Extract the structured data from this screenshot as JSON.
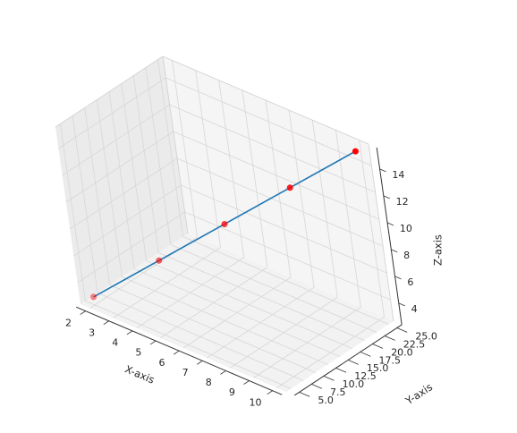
{
  "chart_data": {
    "type": "line",
    "projection": "3d",
    "title": "",
    "xlabel": "X-axis",
    "ylabel": "Y-axis",
    "zlabel": "Z-axis",
    "x_ticks": [
      "2",
      "3",
      "4",
      "5",
      "6",
      "7",
      "8",
      "9",
      "10"
    ],
    "y_ticks": [
      "5.0",
      "7.5",
      "10.0",
      "12.5",
      "15.0",
      "17.5",
      "20.0",
      "22.5",
      "25.0"
    ],
    "z_ticks": [
      "4",
      "6",
      "8",
      "10",
      "12",
      "14"
    ],
    "series": [
      {
        "x": [
          2,
          4,
          6,
          8,
          10
        ],
        "y": [
          5,
          10,
          15,
          20,
          25
        ],
        "z": [
          3,
          6,
          9,
          12,
          15
        ],
        "line_color": "#1f77b4",
        "marker_color": "#ff0000"
      }
    ],
    "grid": true,
    "pane_color": "#f2f2f2"
  }
}
